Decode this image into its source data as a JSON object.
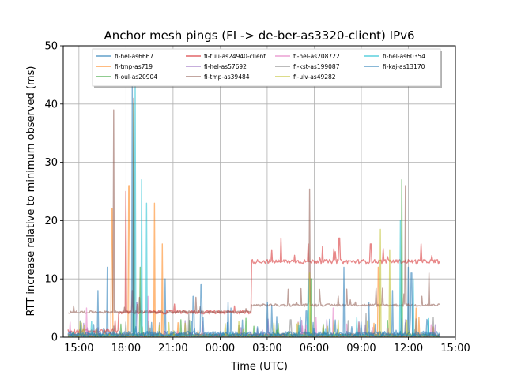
{
  "chart_data": {
    "type": "line",
    "title": "Anchor mesh pings (FI -> de-ber-as3320-client) IPv6",
    "xlabel": "Time (UTC)",
    "ylabel": "RTT increase relative to minimum observed (ms)",
    "x_unit": "hours since 00:00 UTC (negative = previous day)",
    "xlim": [
      -10.0,
      15.0
    ],
    "ylim": [
      0,
      50
    ],
    "x_ticks": [
      -9,
      -6,
      -3,
      0,
      3,
      6,
      9,
      12,
      15
    ],
    "x_tick_labels": [
      "15:00",
      "18:00",
      "21:00",
      "00:00",
      "03:00",
      "06:00",
      "09:00",
      "12:00",
      "15:00"
    ],
    "y_ticks": [
      0,
      10,
      20,
      30,
      40,
      50
    ],
    "y_tick_labels": [
      "0",
      "10",
      "20",
      "30",
      "40",
      "50"
    ],
    "grid": true,
    "legend_position": "upper-center",
    "legend_columns": 4,
    "series": [
      {
        "name": "fi-hel-as6667",
        "color": "#1f77b4",
        "baseline": 0.4,
        "spikes": [
          [
            -7.2,
            12
          ],
          [
            -5.5,
            8
          ],
          [
            -3.5,
            10
          ],
          [
            -1.7,
            7
          ],
          [
            0.7,
            5
          ],
          [
            3.3,
            5.5
          ],
          [
            5.5,
            4.5
          ],
          [
            9.5,
            6
          ],
          [
            12.0,
            12
          ]
        ]
      },
      {
        "name": "fi-tmp-as719",
        "color": "#ff7f0e",
        "baseline": 0.3,
        "spikes": [
          [
            -6.9,
            22
          ],
          [
            -5.8,
            26
          ],
          [
            -4.2,
            23
          ],
          [
            -3.7,
            16
          ],
          [
            10.1,
            12
          ],
          [
            12.5,
            5
          ]
        ]
      },
      {
        "name": "fi-oul-as20904",
        "color": "#2ca02c",
        "baseline": 0.3,
        "spikes": [
          [
            -5.5,
            40
          ],
          [
            -5.1,
            12
          ],
          [
            5.8,
            10
          ],
          [
            11.6,
            27
          ]
        ]
      },
      {
        "name": "fi-tuu-as24940-client",
        "color": "#d62728",
        "baseline": 0.5,
        "spikes": [
          [
            -6.0,
            25
          ],
          [
            -5.6,
            8
          ],
          [
            1.5,
            4
          ]
        ],
        "steps": [
          [
            -10.0,
            0.5
          ],
          [
            -6.5,
            3.8
          ],
          [
            -0.6,
            3.8
          ],
          [
            2.0,
            12.5
          ],
          [
            14.0,
            12.5
          ]
        ],
        "step_spikes": [
          [
            3.3,
            15
          ],
          [
            3.9,
            17
          ],
          [
            5.6,
            16
          ],
          [
            7.6,
            17
          ],
          [
            9.6,
            16
          ],
          [
            12.8,
            16
          ],
          [
            13.5,
            14
          ]
        ]
      },
      {
        "name": "fi-hel-as57692",
        "color": "#9467bd",
        "baseline": 0.2,
        "spikes": [
          [
            -5.3,
            6
          ],
          [
            6.8,
            3
          ]
        ]
      },
      {
        "name": "fi-tmp-as39484",
        "color": "#8c564b",
        "baseline": 0.3,
        "steps": [
          [
            -10.0,
            4.0
          ],
          [
            -0.6,
            4.0
          ],
          [
            2.0,
            5.2
          ],
          [
            14.0,
            5.2
          ]
        ],
        "step_spikes": [
          [
            -5.5,
            41
          ],
          [
            -6.8,
            39
          ],
          [
            5.7,
            25.4
          ],
          [
            11.8,
            26
          ],
          [
            13.3,
            11
          ]
        ]
      },
      {
        "name": "fi-hel-as208722",
        "color": "#e377c2",
        "baseline": 0.3,
        "spikes": [
          [
            -8.5,
            5
          ],
          [
            -4.6,
            7
          ],
          [
            7.2,
            5
          ]
        ]
      },
      {
        "name": "fi-kst-as199087",
        "color": "#7f7f7f",
        "baseline": 0.4,
        "spikes": [
          [
            -2.0,
            4
          ],
          [
            4.5,
            3
          ],
          [
            9.3,
            4
          ]
        ]
      },
      {
        "name": "fi-ulv-as49282",
        "color": "#bcbd22",
        "baseline": 0.2,
        "spikes": [
          [
            5.7,
            11
          ],
          [
            10.2,
            18.5
          ],
          [
            10.8,
            15
          ]
        ]
      },
      {
        "name": "fi-hel-as60354",
        "color": "#17becf",
        "baseline": 0.3,
        "spikes": [
          [
            -5.0,
            27
          ],
          [
            -5.4,
            45
          ],
          [
            -4.7,
            23
          ],
          [
            5.6,
            10
          ],
          [
            11.5,
            20
          ],
          [
            12.3,
            10
          ]
        ]
      },
      {
        "name": "fi-kaj-as13170",
        "color": "#1f77b4",
        "baseline": 0.6,
        "spikes": [
          [
            -5.6,
            44
          ],
          [
            -7.8,
            8
          ],
          [
            -1.2,
            9
          ],
          [
            0.5,
            6
          ],
          [
            3.0,
            6
          ],
          [
            7.9,
            12
          ],
          [
            11.0,
            8
          ],
          [
            12.2,
            11
          ]
        ]
      }
    ]
  }
}
